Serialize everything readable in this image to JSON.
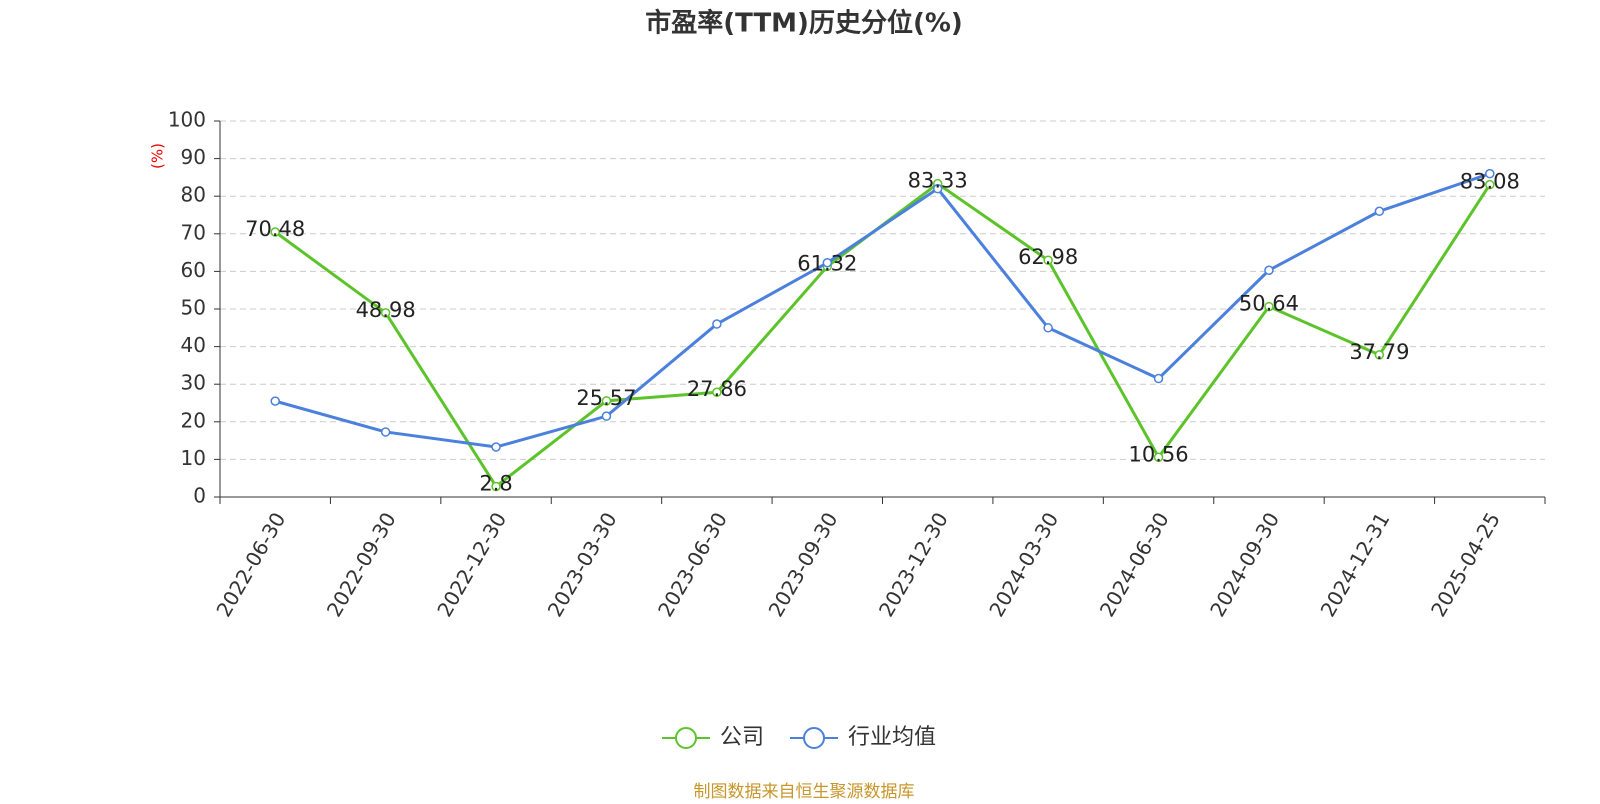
{
  "chart_data": {
    "type": "line",
    "title": "市盈率(TTM)历史分位(%)",
    "y_label": "(%)",
    "categories": [
      "2022-06-30",
      "2022-09-30",
      "2022-12-30",
      "2023-03-30",
      "2023-06-30",
      "2023-09-30",
      "2023-12-30",
      "2024-03-30",
      "2024-06-30",
      "2024-09-30",
      "2024-12-31",
      "2025-04-25"
    ],
    "series": [
      {
        "name": "公司",
        "color": "#5cc42a",
        "values": [
          70.48,
          48.98,
          2.8,
          25.57,
          27.86,
          61.32,
          83.33,
          62.98,
          10.56,
          50.64,
          37.79,
          83.08
        ],
        "data_labels": true
      },
      {
        "name": "行业均值",
        "color": "#4b80dc",
        "values": [
          25.5,
          17.3,
          13.3,
          21.5,
          46,
          62.3,
          82,
          45,
          31.5,
          60.3,
          76,
          86
        ],
        "data_labels": false
      }
    ],
    "ylim": [
      0,
      100
    ],
    "yticks": [
      0,
      10,
      20,
      30,
      40,
      50,
      60,
      70,
      80,
      90,
      100
    ],
    "grid": true,
    "legend": "bottom",
    "footer": "制图数据来自恒生聚源数据库"
  }
}
